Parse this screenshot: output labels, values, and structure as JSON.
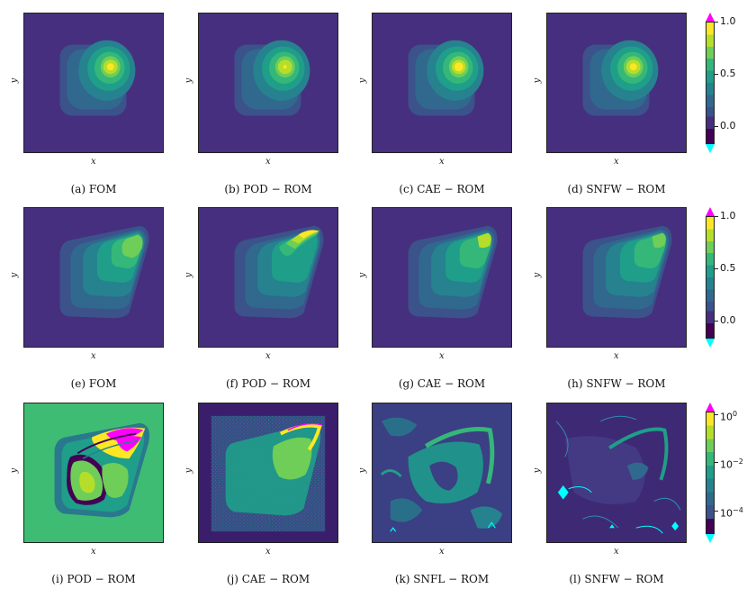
{
  "colors": {
    "bg": "#462f7e",
    "l1": "#3b528b",
    "l2": "#31688e",
    "l3": "#26828e",
    "l4": "#1f9e89",
    "l5": "#35b779",
    "l6": "#6ece58",
    "l7": "#b5de2b",
    "l8": "#fde725",
    "over": "#ff00ff",
    "under": "#00ffff",
    "green_bg": "#3fbc73",
    "dark": "#440154"
  },
  "axis": {
    "x": "x",
    "y": "y"
  },
  "rows": [
    {
      "captions": [
        "(a) FOM",
        "(b) POD − ROM",
        "(c) CAE − ROM",
        "(d) SNFW − ROM"
      ],
      "colorbar": {
        "ticks": [
          "1.0",
          "0.5",
          "0.0"
        ]
      }
    },
    {
      "captions": [
        "(e) FOM",
        "(f) POD − ROM",
        "(g) CAE − ROM",
        "(h) SNFW − ROM"
      ],
      "colorbar": {
        "ticks": [
          "1.0",
          "0.5",
          "0.0"
        ]
      }
    },
    {
      "captions": [
        "(i) POD − ROM",
        "(j) CAE − ROM",
        "(k) SNFL − ROM",
        "(l) SNFW − ROM"
      ],
      "colorbar": {
        "ticks": [
          {
            "base": "10",
            "exp": "0"
          },
          {
            "base": "10",
            "exp": "−2"
          },
          {
            "base": "10",
            "exp": "−4"
          }
        ]
      }
    }
  ]
}
